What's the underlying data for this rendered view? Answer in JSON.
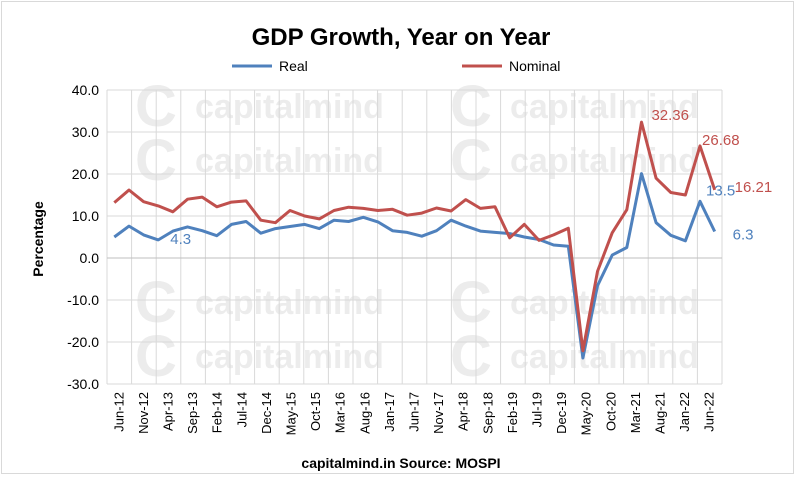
{
  "chart_data": {
    "type": "line",
    "title": "GDP Growth, Year on Year",
    "ylabel": "Percentage",
    "xlabel": "",
    "source": "capitalmind.in  Source: MOSPI",
    "watermark": "capitalmind",
    "ylim": [
      -30,
      40
    ],
    "yticks": [
      "40.0",
      "30.0",
      "20.0",
      "10.0",
      "0.0",
      "-10.0",
      "-20.0",
      "-30.0"
    ],
    "grid": true,
    "legend_position": "top-center",
    "x": [
      "Jun-12",
      "Sep-12",
      "Dec-12",
      "Mar-13",
      "Jun-13",
      "Sep-13",
      "Dec-13",
      "Mar-14",
      "Jun-14",
      "Sep-14",
      "Dec-14",
      "Mar-15",
      "Jun-15",
      "Sep-15",
      "Dec-15",
      "Mar-16",
      "Jun-16",
      "Sep-16",
      "Dec-16",
      "Mar-17",
      "Jun-17",
      "Sep-17",
      "Dec-17",
      "Mar-18",
      "Jun-18",
      "Sep-18",
      "Dec-18",
      "Mar-19",
      "Jun-19",
      "Sep-19",
      "Dec-19",
      "Mar-20",
      "Jun-20",
      "Sep-20",
      "Dec-20",
      "Mar-21",
      "Jun-21",
      "Sep-21",
      "Dec-21",
      "Mar-22",
      "Jun-22",
      "Sep-22"
    ],
    "xtick_labels": [
      "Jun-12",
      "Nov-12",
      "Apr-13",
      "Sep-13",
      "Feb-14",
      "Jul-14",
      "Dec-14",
      "May-15",
      "Oct-15",
      "Mar-16",
      "Aug-16",
      "Jan-17",
      "Jun-17",
      "Nov-17",
      "Apr-18",
      "Sep-18",
      "Feb-19",
      "Jul-19",
      "Dec-19",
      "May-20",
      "Oct-20",
      "Mar-21",
      "Aug-21",
      "Jan-22",
      "Jun-22"
    ],
    "series": [
      {
        "name": "Real",
        "color": "#4f81bd",
        "values": [
          5.0,
          7.6,
          5.5,
          4.3,
          6.4,
          7.4,
          6.5,
          5.3,
          8.0,
          8.7,
          5.9,
          7.0,
          7.5,
          8.0,
          7.0,
          9.0,
          8.7,
          9.7,
          8.6,
          6.5,
          6.1,
          5.2,
          6.5,
          9.0,
          7.6,
          6.4,
          6.1,
          5.8,
          5.0,
          4.4,
          3.1,
          2.8,
          -23.8,
          -6.6,
          0.7,
          2.5,
          20.1,
          8.4,
          5.4,
          4.1,
          13.5,
          6.3
        ]
      },
      {
        "name": "Nominal",
        "color": "#c0504d",
        "values": [
          13.2,
          16.2,
          13.4,
          12.4,
          11.0,
          14.0,
          14.5,
          12.2,
          13.3,
          13.6,
          9.0,
          8.4,
          11.3,
          10.0,
          9.3,
          11.3,
          12.1,
          11.8,
          11.3,
          11.6,
          10.2,
          10.7,
          11.9,
          11.2,
          13.9,
          11.8,
          12.2,
          4.8,
          8.0,
          4.2,
          5.5,
          7.1,
          -22.1,
          -3.2,
          6.0,
          11.5,
          32.36,
          19.0,
          15.6,
          15.0,
          26.68,
          16.21
        ]
      }
    ],
    "annotations": [
      {
        "series": "Real",
        "text": "4.3"
      },
      {
        "series": "Real",
        "text": "13.5"
      },
      {
        "series": "Real",
        "text": "6.3"
      },
      {
        "series": "Nominal",
        "text": "32.36"
      },
      {
        "series": "Nominal",
        "text": "26.68"
      },
      {
        "series": "Nominal",
        "text": "16.21"
      }
    ]
  }
}
